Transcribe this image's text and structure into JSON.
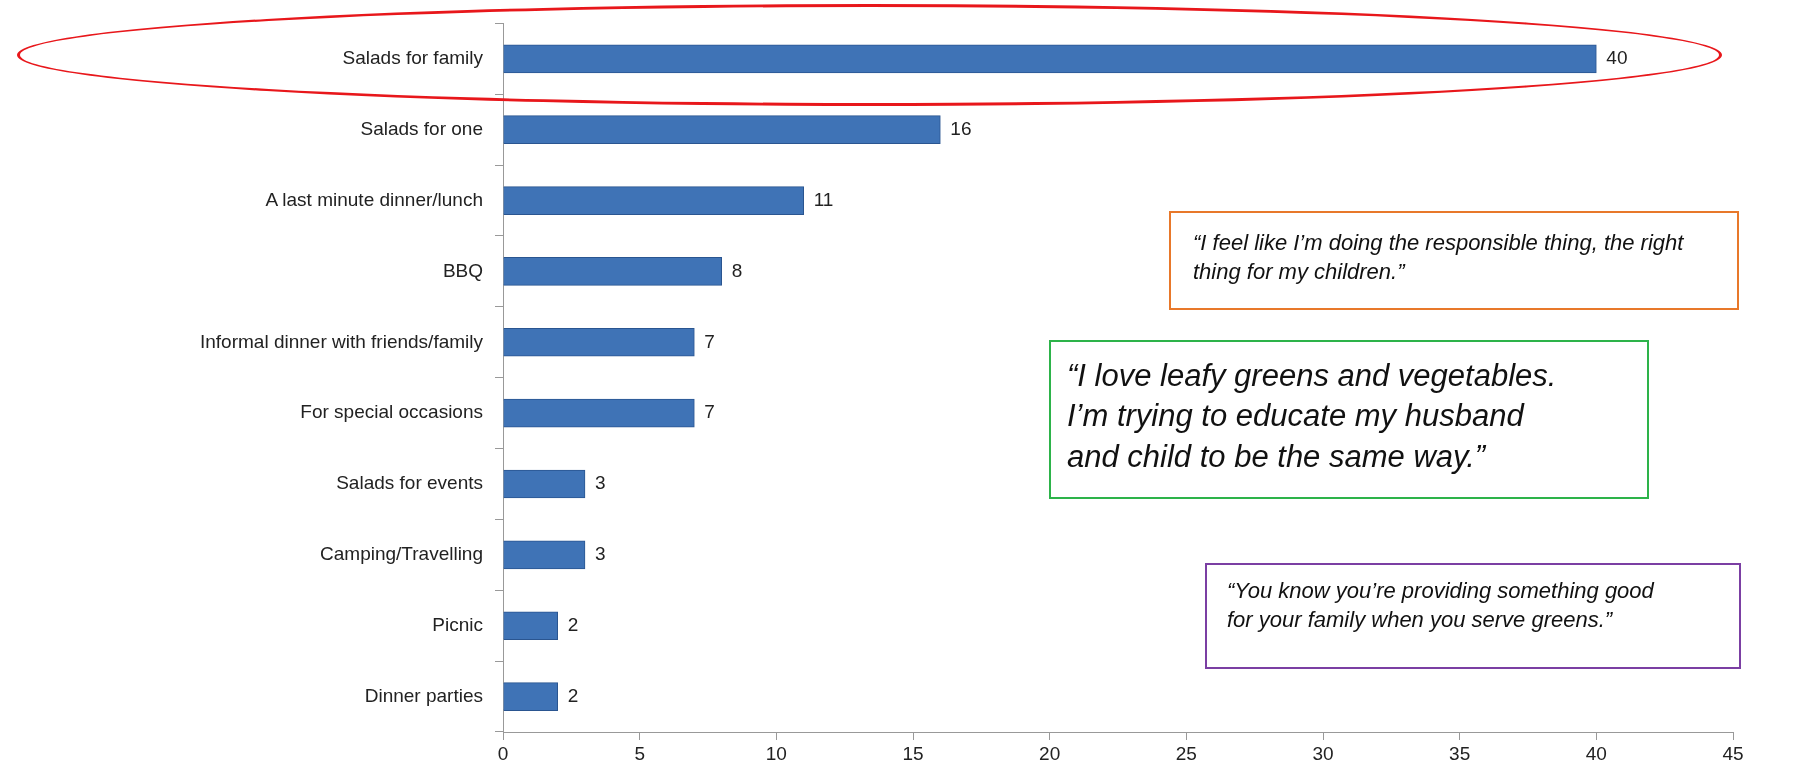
{
  "chart_data": {
    "type": "bar",
    "orientation": "horizontal",
    "categories": [
      "Salads for family",
      "Salads for one",
      "A last minute dinner/lunch",
      "BBQ",
      "Informal dinner with friends/family",
      "For special occasions",
      "Salads for events",
      "Camping/Travelling",
      "Picnic",
      "Dinner parties"
    ],
    "values": [
      40,
      16,
      11,
      8,
      7,
      7,
      3,
      3,
      2,
      2
    ],
    "color": "#3f73b6",
    "xlim": [
      0,
      45
    ],
    "xticks": [
      0,
      5,
      10,
      15,
      20,
      25,
      30,
      35,
      40,
      45
    ],
    "grid": false,
    "legend": false,
    "data_labels": true,
    "annotations": [
      "“I feel like I’m doing the responsible thing, the right thing for my children.”",
      "“I love leafy greens and vegetables. I’m trying to educate my husband and child to be the same way.”",
      "“You know you’re providing something good for your family when you serve greens.”"
    ]
  }
}
